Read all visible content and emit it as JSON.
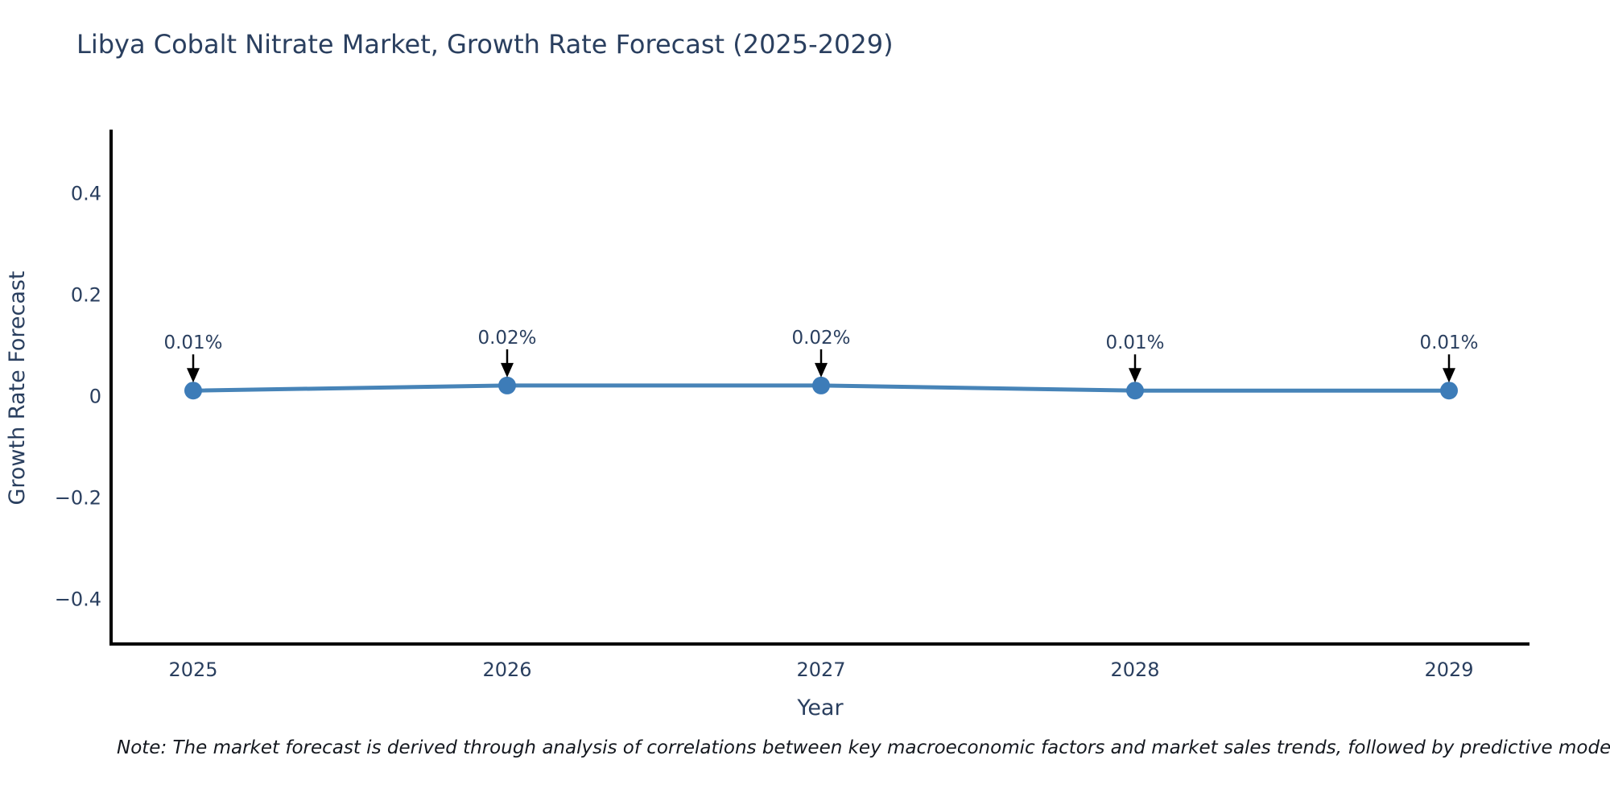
{
  "title": "Libya Cobalt Nitrate Market, Growth Rate Forecast (2025-2029)",
  "note": "Note: The market forecast is derived through analysis of correlations between key macroeconomic factors and market sales trends, followed by predictive modeling to project future sa",
  "colors": {
    "text": "#2a3f5f",
    "axis": "#000000",
    "line": "#4784b8",
    "marker": "#3d7cb8",
    "annotation_arrow": "#000000",
    "note_text": "#14181f"
  },
  "chart_data": {
    "type": "line",
    "title": "Libya Cobalt Nitrate Market, Growth Rate Forecast (2025-2029)",
    "xlabel": "Year",
    "ylabel": "Growth Rate Forecast",
    "x": [
      2025,
      2026,
      2027,
      2028,
      2029
    ],
    "values": [
      0.01,
      0.02,
      0.02,
      0.01,
      0.01
    ],
    "annotations": [
      "0.01%",
      "0.02%",
      "0.02%",
      "0.01%",
      "0.01%"
    ],
    "xtick_labels": [
      "2025",
      "2026",
      "2027",
      "2028",
      "2029"
    ],
    "yticks": [
      0.4,
      0.2,
      0,
      -0.2,
      -0.4
    ],
    "ytick_labels": [
      "0.4",
      "0.2",
      "0",
      "−0.2",
      "−0.4"
    ],
    "ylim": [
      -0.49,
      0.525
    ],
    "grid": false,
    "legend": "none",
    "marker_style": "circle",
    "annotation_style": "arrow-down"
  }
}
